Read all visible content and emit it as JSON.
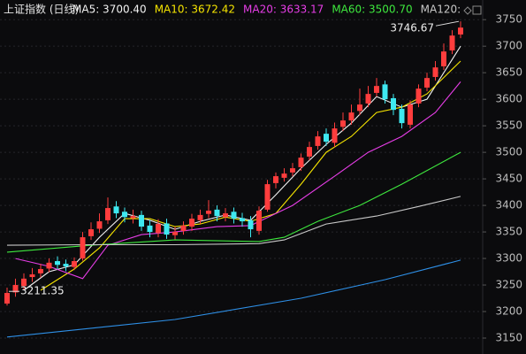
{
  "chart_data": {
    "type": "candlestick",
    "title": "上证指数 (日线)",
    "up_color": "#ff3d3d",
    "down_color": "#3ee8f0",
    "ylim": [
      3120,
      3787
    ],
    "yticks": [
      3150,
      3200,
      3250,
      3300,
      3350,
      3400,
      3450,
      3500,
      3550,
      3600,
      3650,
      3700,
      3750
    ],
    "grid": true,
    "candles": {
      "open": [
        3215,
        3236,
        3248,
        3265,
        3272,
        3281,
        3295,
        3290,
        3284,
        3300,
        3342,
        3356,
        3372,
        3398,
        3388,
        3376,
        3382,
        3362,
        3348,
        3366,
        3344,
        3352,
        3360,
        3372,
        3384,
        3392,
        3378,
        3388,
        3376,
        3372,
        3352,
        3392,
        3442,
        3452,
        3462,
        3472,
        3492,
        3512,
        3535,
        3518,
        3548,
        3560,
        3578,
        3592,
        3612,
        3628,
        3602,
        3582,
        3552,
        3592,
        3622,
        3642,
        3662,
        3692,
        3722
      ],
      "high": [
        3245,
        3262,
        3272,
        3282,
        3290,
        3300,
        3304,
        3298,
        3302,
        3350,
        3368,
        3385,
        3415,
        3408,
        3396,
        3392,
        3390,
        3372,
        3374,
        3375,
        3360,
        3370,
        3384,
        3392,
        3410,
        3400,
        3395,
        3396,
        3386,
        3380,
        3398,
        3448,
        3462,
        3470,
        3480,
        3498,
        3520,
        3540,
        3545,
        3556,
        3575,
        3590,
        3620,
        3625,
        3640,
        3635,
        3610,
        3590,
        3598,
        3628,
        3650,
        3672,
        3705,
        3730,
        3746.67
      ],
      "low": [
        3211.35,
        3228,
        3240,
        3256,
        3264,
        3274,
        3280,
        3276,
        3278,
        3296,
        3335,
        3348,
        3365,
        3376,
        3368,
        3366,
        3352,
        3340,
        3340,
        3337,
        3336,
        3345,
        3352,
        3365,
        3376,
        3370,
        3370,
        3366,
        3360,
        3340,
        3345,
        3388,
        3432,
        3445,
        3455,
        3465,
        3485,
        3505,
        3512,
        3510,
        3540,
        3552,
        3570,
        3585,
        3605,
        3592,
        3570,
        3545,
        3545,
        3585,
        3615,
        3635,
        3655,
        3685,
        3715
      ],
      "close": [
        3235,
        3250,
        3262,
        3270,
        3280,
        3292,
        3288,
        3285,
        3295,
        3340,
        3355,
        3370,
        3395,
        3385,
        3378,
        3380,
        3360,
        3350,
        3365,
        3345,
        3350,
        3362,
        3375,
        3382,
        3390,
        3380,
        3385,
        3375,
        3370,
        3355,
        3390,
        3440,
        3455,
        3460,
        3470,
        3490,
        3510,
        3530,
        3520,
        3545,
        3560,
        3575,
        3590,
        3610,
        3625,
        3600,
        3580,
        3555,
        3590,
        3620,
        3640,
        3660,
        3690,
        3720,
        3735
      ]
    },
    "series": [
      {
        "legend": "MA5: 3700.40",
        "color": "#f2f2f2",
        "x": [
          2,
          5,
          8,
          11,
          14,
          17,
          20,
          23,
          26,
          29,
          32,
          35,
          38,
          41,
          44,
          47,
          50,
          54
        ],
        "values": [
          3240,
          3275,
          3288,
          3340,
          3385,
          3372,
          3355,
          3370,
          3382,
          3372,
          3420,
          3470,
          3515,
          3555,
          3605,
          3585,
          3600,
          3700
        ]
      },
      {
        "legend": "MA10: 3672.42",
        "color": "#f5e400",
        "x": [
          4,
          8,
          11,
          14,
          17,
          20,
          23,
          26,
          29,
          32,
          35,
          38,
          41,
          44,
          47,
          50,
          54
        ],
        "values": [
          3240,
          3280,
          3320,
          3375,
          3375,
          3360,
          3365,
          3378,
          3370,
          3385,
          3440,
          3500,
          3530,
          3575,
          3585,
          3610,
          3672
        ]
      },
      {
        "legend": "MA20: 3633.17",
        "color": "#e63de6",
        "x": [
          1,
          5,
          9,
          12,
          16,
          20,
          25,
          29,
          34,
          39,
          43,
          47,
          51,
          54
        ],
        "values": [
          3300,
          3285,
          3262,
          3325,
          3345,
          3350,
          3360,
          3362,
          3400,
          3455,
          3500,
          3530,
          3575,
          3633
        ]
      },
      {
        "legend": "MA60: 3500.70",
        "color": "#3ee83e",
        "x": [
          0,
          10,
          20,
          30,
          33,
          37,
          42,
          47,
          54
        ],
        "values": [
          3312,
          3325,
          3335,
          3332,
          3340,
          3370,
          3400,
          3440,
          3500
        ]
      },
      {
        "legend": "MA120:",
        "color": "#c8c8c8",
        "x": [
          0,
          10,
          20,
          30,
          33,
          38,
          44,
          49,
          54
        ],
        "values": [
          3325,
          3326,
          3326,
          3328,
          3335,
          3365,
          3380,
          3398,
          3417
        ]
      },
      {
        "color": "#2e8fe6",
        "x": [
          0,
          20,
          35,
          45,
          54
        ],
        "values": [
          3152,
          3185,
          3225,
          3260,
          3297
        ]
      }
    ]
  }
}
